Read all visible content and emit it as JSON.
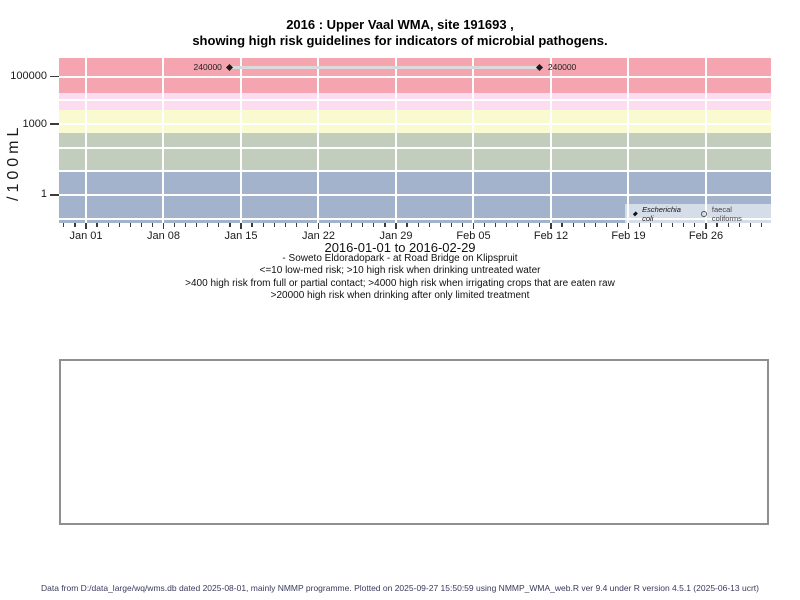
{
  "title": {
    "line1": "2016 : Upper Vaal WMA, site 191693 ,",
    "line2": "showing high risk guidelines for indicators of microbial pathogens."
  },
  "chart_data": {
    "type": "scatter",
    "y_scale": "log10",
    "ylabel": "/100mL",
    "xlabel": "2016-01-01 to 2016-02-29",
    "ylim": [
      0.07,
      620000
    ],
    "grid": true,
    "legend_position": "bottom-right",
    "y_ticks": [
      {
        "value": 1,
        "label": "1"
      },
      {
        "value": 1000,
        "label": "1000"
      },
      {
        "value": 100000,
        "label": "100000"
      }
    ],
    "x_ticks": [
      {
        "day": 0,
        "label": "Jan 01"
      },
      {
        "day": 7,
        "label": "Jan 08"
      },
      {
        "day": 14,
        "label": "Jan 15"
      },
      {
        "day": 21,
        "label": "Jan 22"
      },
      {
        "day": 28,
        "label": "Jan 29"
      },
      {
        "day": 35,
        "label": "Feb 05"
      },
      {
        "day": 42,
        "label": "Feb 12"
      },
      {
        "day": 49,
        "label": "Feb 19"
      },
      {
        "day": 56,
        "label": "Feb 26"
      }
    ],
    "risk_bands": [
      {
        "from": 20000,
        "to": null,
        "color": "#F4A5AF"
      },
      {
        "from": 4000,
        "to": 20000,
        "color": "#FBDCF1"
      },
      {
        "from": 400,
        "to": 4000,
        "color": "#FAFAD0"
      },
      {
        "from": 10,
        "to": 400,
        "color": "#C3CDBE"
      },
      {
        "from": null,
        "to": 10,
        "color": "#A3B3CC"
      }
    ],
    "series": [
      {
        "name": "Escherichia coli",
        "marker": "filled-diamond",
        "italic": true,
        "points": [
          {
            "day": 13,
            "value": 240000,
            "label": "240000",
            "label_side": "left"
          },
          {
            "day": 41,
            "value": 240000,
            "label": "240000",
            "label_side": "right"
          }
        ]
      },
      {
        "name": "faecal coliforms",
        "marker": "open-circle",
        "italic": false,
        "points": []
      }
    ]
  },
  "annotations": {
    "lines": [
      "- Soweto Eldoradopark - at Road Bridge on Klipspruit",
      "<=10 low-med risk; >10 high risk when drinking untreated water",
      ">400 high risk from full or partial contact; >4000 high risk when irrigating crops that are eaten raw",
      ">20000 high risk when drinking after only limited treatment"
    ]
  },
  "footer": {
    "text": "Data from D:/data_large/wq/wms.db dated 2025-08-01, mainly NMMP programme. Plotted on 2025-09-27 15:50:59 using NMMP_WMA_web.R ver 9.4 under R version 4.5.1 (2025-06-13 ucrt)"
  },
  "colors": {
    "gridline": "#FFFFFF",
    "connector_line": "#DADADA",
    "marker": "#1A1A1A",
    "footer_text": "#3A3A5C"
  }
}
